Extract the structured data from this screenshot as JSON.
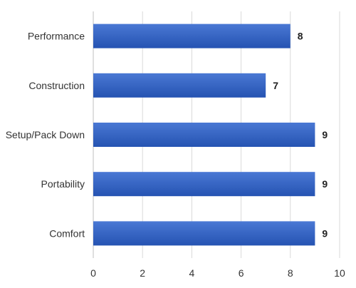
{
  "chart_data": {
    "type": "bar",
    "orientation": "horizontal",
    "categories": [
      "Performance",
      "Construction",
      "Setup/Pack Down",
      "Portability",
      "Comfort"
    ],
    "values": [
      8,
      7,
      9,
      9,
      9
    ],
    "data_labels": [
      "8",
      "7",
      "9",
      "9",
      "9"
    ],
    "xlim": [
      0,
      10
    ],
    "x_ticks": [
      0,
      2,
      4,
      6,
      8,
      10
    ],
    "x_tick_labels": [
      "0",
      "2",
      "4",
      "6",
      "8",
      "10"
    ],
    "grid": true,
    "bar_color_top": "#4a78d4",
    "bar_color_bottom": "#2553b2",
    "title": "",
    "xlabel": "",
    "ylabel": ""
  }
}
